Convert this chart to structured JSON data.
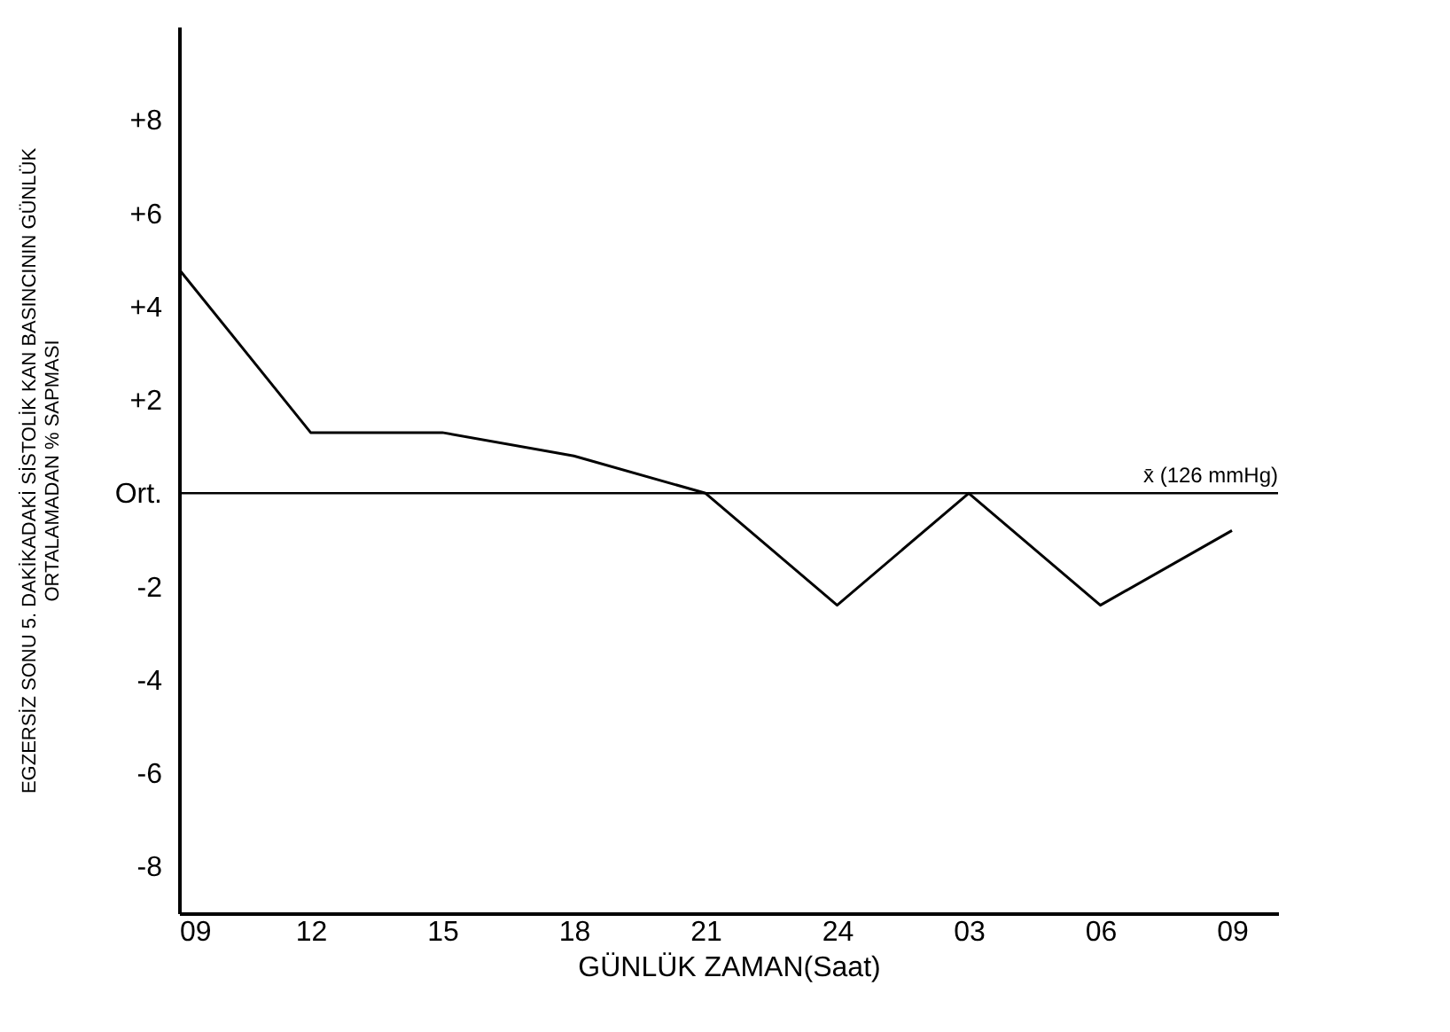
{
  "chart_data": {
    "type": "line",
    "xlabel": "GÜNLÜK  ZAMAN(Saat)",
    "ylabel": "EGZERSİZ  SONU  5. DAKİKADAKİ  SİSTOLİK  KAN  BASINCININ  GÜNLÜK\nORTALAMADAN  %  SAPMASI",
    "categories": [
      "09",
      "12",
      "15",
      "18",
      "21",
      "24",
      "03",
      "06",
      "09"
    ],
    "series": [
      {
        "color": "#000000",
        "values": [
          4.8,
          1.3,
          1.3,
          0.8,
          0,
          -2.4,
          0,
          -2.4,
          -0.8
        ]
      }
    ],
    "ylim": [
      -9,
      10
    ],
    "yticks": [
      {
        "value": 8,
        "label": "+8"
      },
      {
        "value": 6,
        "label": "+6"
      },
      {
        "value": 4,
        "label": "+4"
      },
      {
        "value": 2,
        "label": "+2"
      },
      {
        "value": 0,
        "label": "Ort."
      },
      -2,
      -4,
      -6,
      -8
    ],
    "ref_lines": [
      {
        "axis": "y",
        "value": 0,
        "label": "x̄ (126 mmHg)",
        "color": "#000000"
      }
    ],
    "grid": false,
    "legend": false,
    "marker": "none",
    "line_style": "solid"
  }
}
